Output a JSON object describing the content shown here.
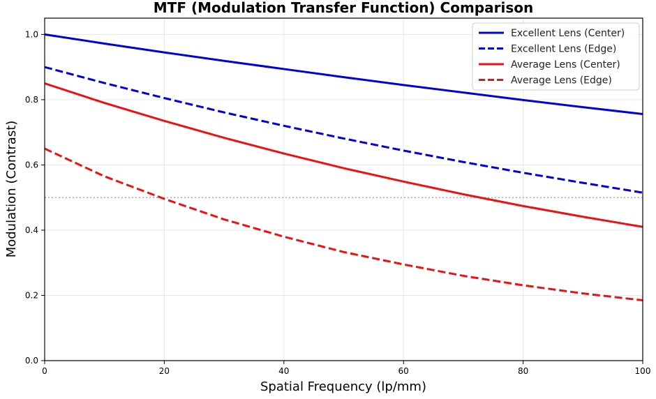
{
  "chart_data": {
    "type": "line",
    "title": "MTF (Modulation Transfer Function) Comparison",
    "xlabel": "Spatial Frequency (lp/mm)",
    "ylabel": "Modulation (Contrast)",
    "xlim": [
      0,
      100
    ],
    "ylim": [
      0,
      1.05
    ],
    "xticks": [
      0,
      20,
      40,
      60,
      80,
      100
    ],
    "xtick_labels": [
      "0",
      "20",
      "40",
      "60",
      "80",
      "100"
    ],
    "yticks": [
      0,
      0.2,
      0.4,
      0.6,
      0.8,
      1.0
    ],
    "ytick_labels": [
      "0.0",
      "0.2",
      "0.4",
      "0.6",
      "0.8",
      "1.0"
    ],
    "grid": true,
    "legend_position": "top-right",
    "reference_line": {
      "y": 0.5,
      "color": "#aaaaaa",
      "style": "dotted"
    },
    "x": [
      0,
      10,
      20,
      30,
      40,
      50,
      60,
      70,
      80,
      90,
      100
    ],
    "series": [
      {
        "name": "Excellent Lens (Center)",
        "color": "#0000dd",
        "style": "solid",
        "values": [
          1.0,
          0.972,
          0.945,
          0.919,
          0.894,
          0.869,
          0.845,
          0.822,
          0.799,
          0.777,
          0.756
        ]
      },
      {
        "name": "Excellent Lens (Edge)",
        "color": "#0000dd",
        "style": "dashed",
        "values": [
          0.9,
          0.851,
          0.805,
          0.761,
          0.72,
          0.681,
          0.644,
          0.609,
          0.576,
          0.545,
          0.515
        ]
      },
      {
        "name": "Average Lens (Center)",
        "color": "#ee1111",
        "style": "solid",
        "values": [
          0.85,
          0.79,
          0.735,
          0.683,
          0.635,
          0.59,
          0.549,
          0.51,
          0.474,
          0.441,
          0.41
        ]
      },
      {
        "name": "Average Lens (Edge)",
        "color": "#ee1111",
        "style": "dashed",
        "values": [
          0.65,
          0.565,
          0.496,
          0.433,
          0.38,
          0.333,
          0.295,
          0.26,
          0.231,
          0.206,
          0.185
        ]
      }
    ]
  }
}
